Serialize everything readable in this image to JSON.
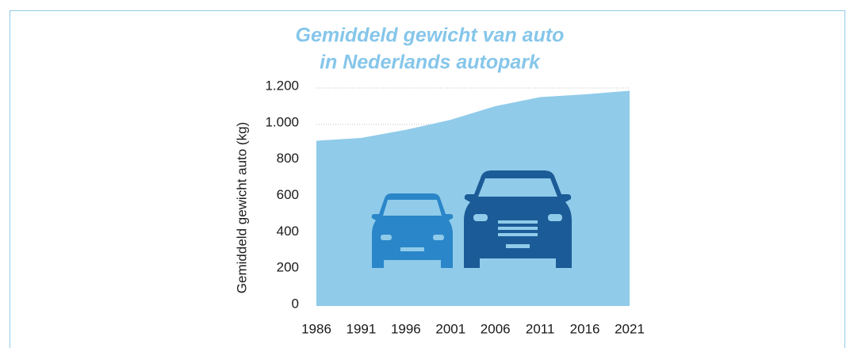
{
  "chart_data": {
    "type": "area",
    "title": [
      "Gemiddeld gewicht van auto",
      "in Nederlands autopark"
    ],
    "y_label": "Gemiddeld gewicht auto (kg)",
    "x": [
      1986,
      1991,
      1996,
      2001,
      2006,
      2011,
      2016,
      2021
    ],
    "series": [
      {
        "color": "#90cbea",
        "values": [
          910,
          925,
          970,
          1025,
          1100,
          1150,
          1165,
          1185
        ]
      }
    ],
    "xlim": [
      1986,
      2021
    ],
    "xticks": [
      1986,
      1991,
      1996,
      2001,
      2006,
      2011,
      2016,
      2021
    ],
    "ylim": [
      0,
      1200
    ],
    "yticks": [
      0,
      200,
      400,
      600,
      800,
      {
        "value": 1000,
        "label": "1.000"
      },
      {
        "value": 1200,
        "label": "1.200"
      }
    ],
    "grid": true
  }
}
